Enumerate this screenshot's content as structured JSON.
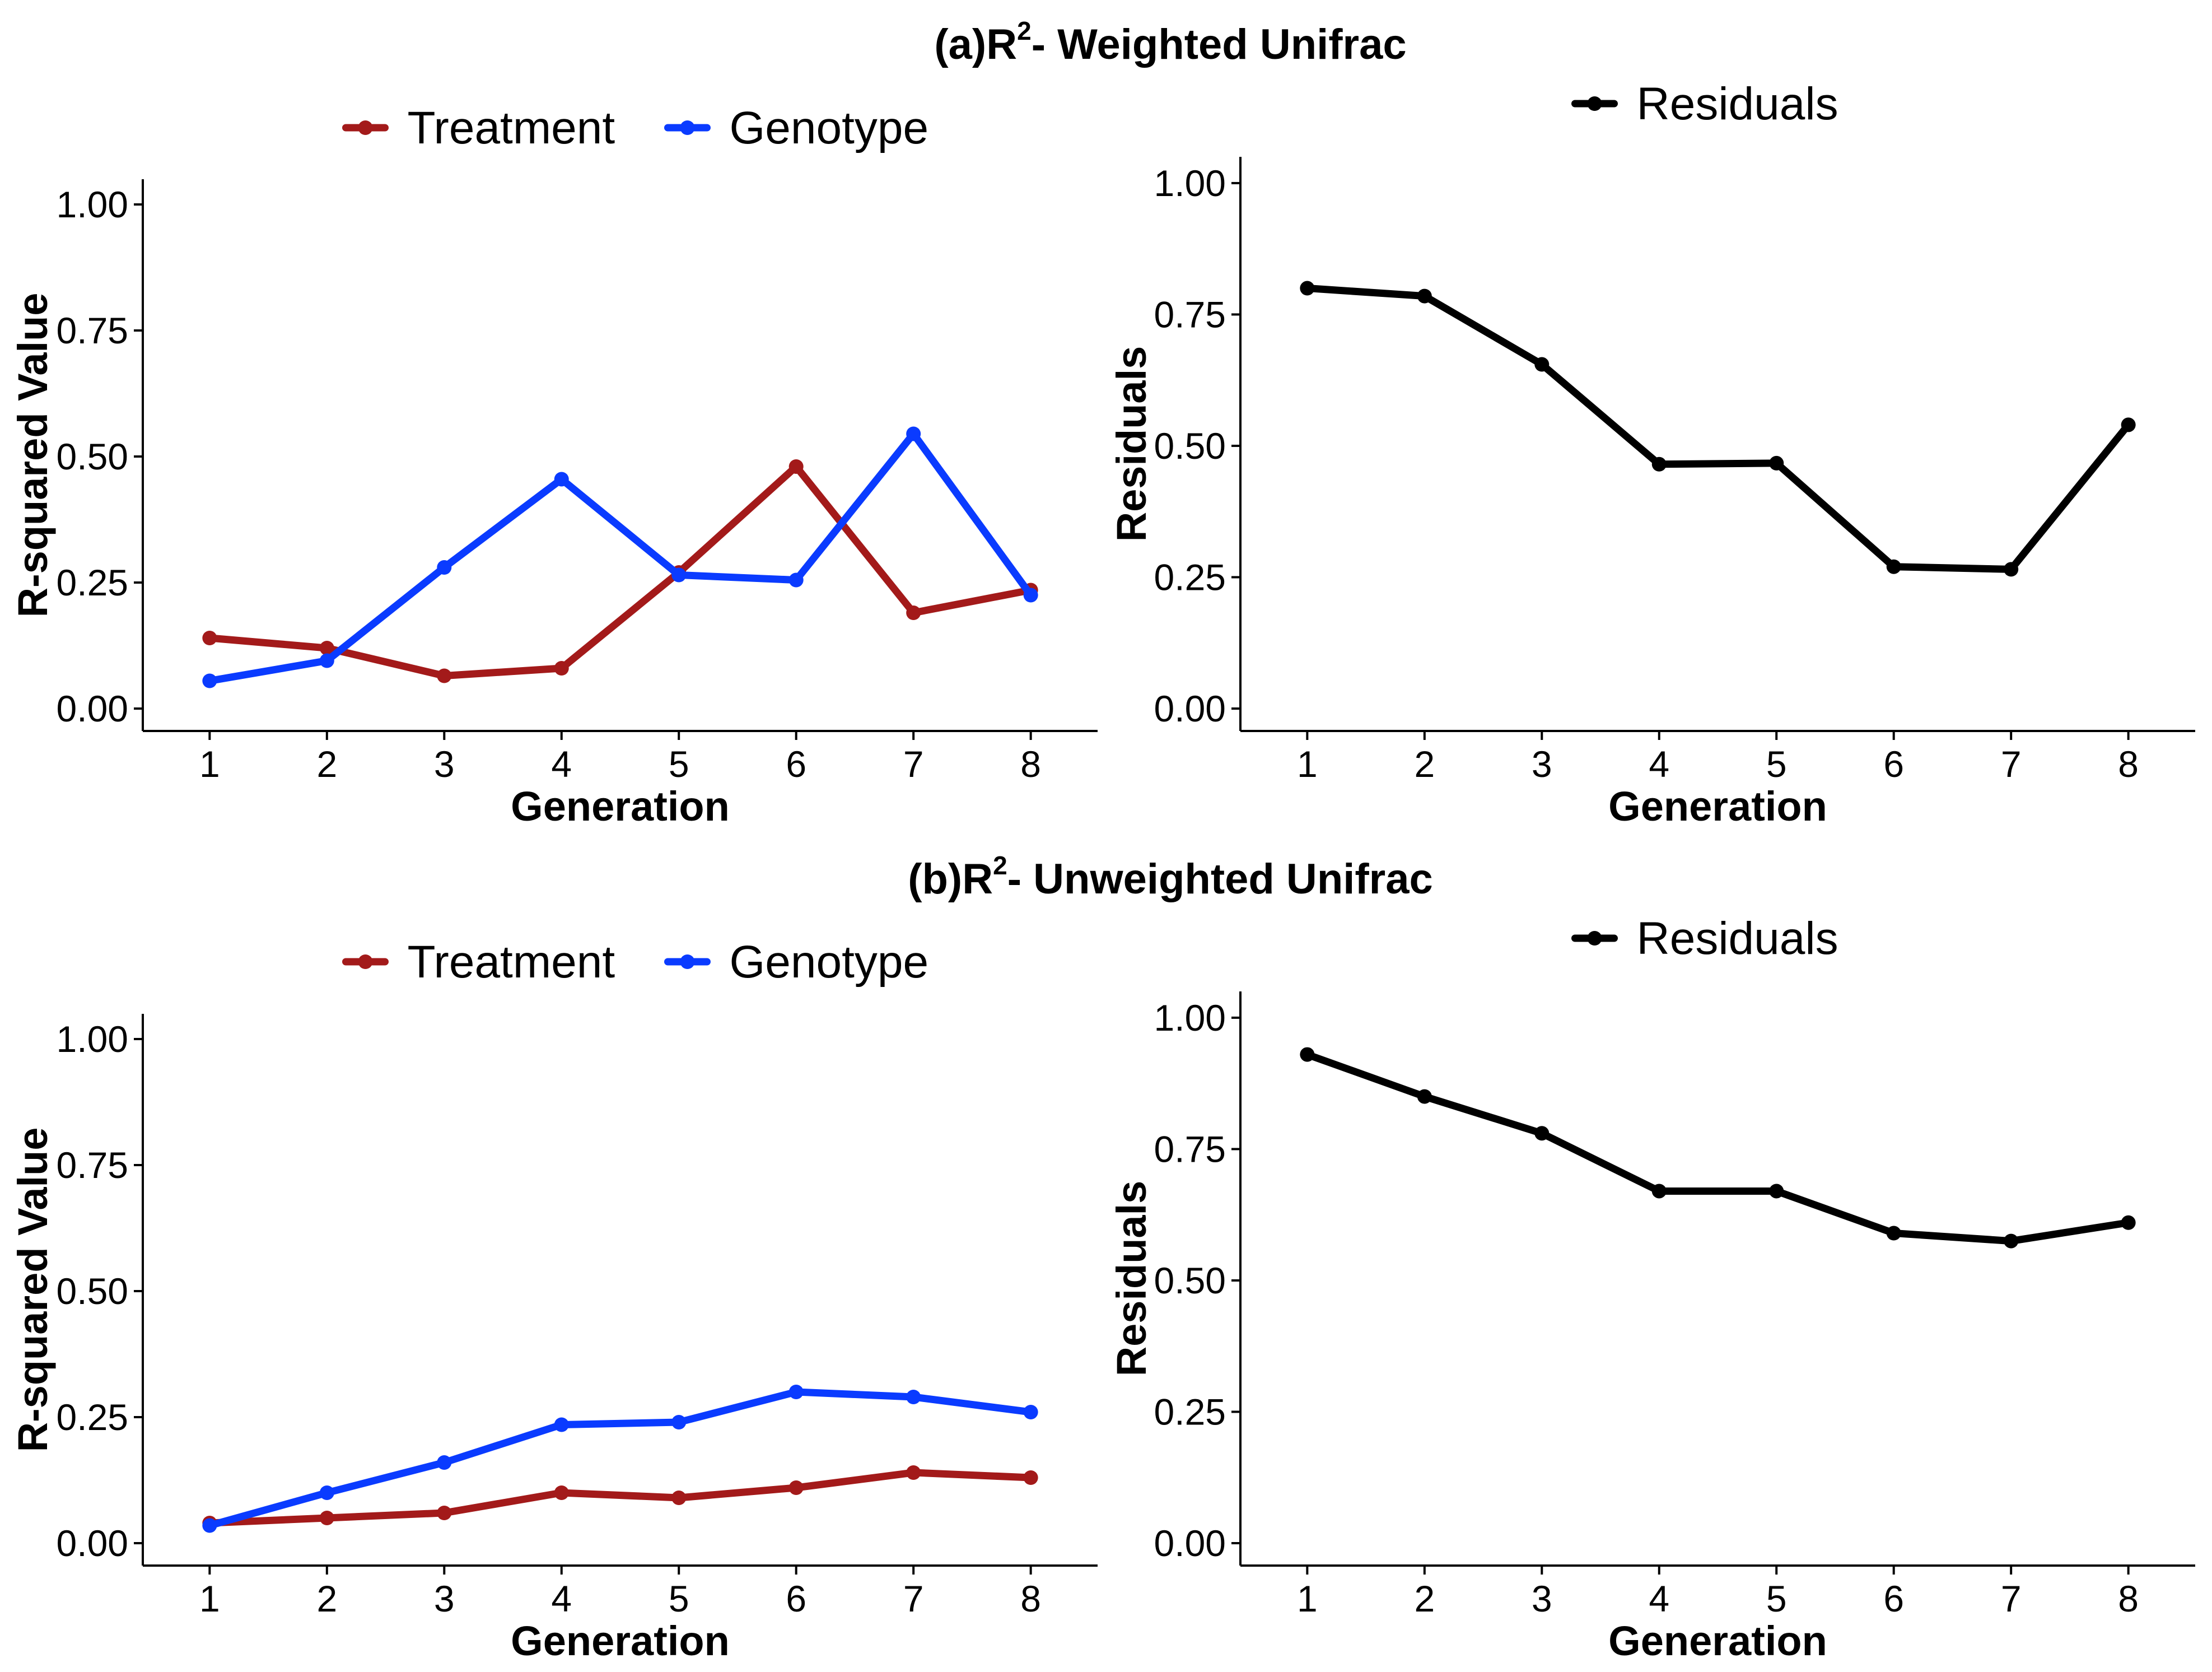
{
  "sections": [
    {
      "prefix": "(a)R",
      "superscript": "2",
      "suffix": "- Weighted Unifrac"
    },
    {
      "prefix": "(b)R",
      "superscript": "2",
      "suffix": "- Unweighted Unifrac"
    }
  ],
  "chart_data": [
    {
      "type": "line",
      "panel": "a-left",
      "xlabel": "Generation",
      "ylabel": "R-squared Value",
      "categories": [
        "1",
        "2",
        "3",
        "4",
        "5",
        "6",
        "7",
        "8"
      ],
      "ylim": [
        0,
        1.0
      ],
      "yticks": [
        "0.00",
        "0.25",
        "0.50",
        "0.75",
        "1.00"
      ],
      "legend_position": "top",
      "series": [
        {
          "name": "Treatment",
          "color": "#A31A1A",
          "values": [
            0.14,
            0.12,
            0.065,
            0.08,
            0.27,
            0.48,
            0.19,
            0.235
          ]
        },
        {
          "name": "Genotype",
          "color": "#0A3BFF",
          "values": [
            0.055,
            0.095,
            0.28,
            0.455,
            0.265,
            0.255,
            0.545,
            0.225
          ]
        }
      ]
    },
    {
      "type": "line",
      "panel": "a-right",
      "xlabel": "Generation",
      "ylabel": "Residuals",
      "categories": [
        "1",
        "2",
        "3",
        "4",
        "5",
        "6",
        "7",
        "8"
      ],
      "ylim": [
        0,
        1.0
      ],
      "yticks": [
        "0.00",
        "0.25",
        "0.50",
        "0.75",
        "1.00"
      ],
      "legend_position": "top",
      "series": [
        {
          "name": "Residuals",
          "color": "#000000",
          "values": [
            0.8,
            0.785,
            0.655,
            0.465,
            0.467,
            0.27,
            0.265,
            0.54
          ]
        }
      ]
    },
    {
      "type": "line",
      "panel": "b-left",
      "xlabel": "Generation",
      "ylabel": "R-squared Value",
      "categories": [
        "1",
        "2",
        "3",
        "4",
        "5",
        "6",
        "7",
        "8"
      ],
      "ylim": [
        0,
        1.0
      ],
      "yticks": [
        "0.00",
        "0.25",
        "0.50",
        "0.75",
        "1.00"
      ],
      "legend_position": "top",
      "series": [
        {
          "name": "Treatment",
          "color": "#A31A1A",
          "values": [
            0.04,
            0.05,
            0.06,
            0.1,
            0.09,
            0.11,
            0.14,
            0.13
          ]
        },
        {
          "name": "Genotype",
          "color": "#0A3BFF",
          "values": [
            0.035,
            0.1,
            0.16,
            0.235,
            0.24,
            0.3,
            0.29,
            0.26
          ]
        }
      ]
    },
    {
      "type": "line",
      "panel": "b-right",
      "xlabel": "Generation",
      "ylabel": "Residuals",
      "categories": [
        "1",
        "2",
        "3",
        "4",
        "5",
        "6",
        "7",
        "8"
      ],
      "ylim": [
        0,
        1.0
      ],
      "yticks": [
        "0.00",
        "0.25",
        "0.50",
        "0.75",
        "1.00"
      ],
      "legend_position": "top",
      "series": [
        {
          "name": "Residuals",
          "color": "#000000",
          "values": [
            0.93,
            0.85,
            0.78,
            0.67,
            0.67,
            0.59,
            0.575,
            0.61
          ]
        }
      ]
    }
  ]
}
